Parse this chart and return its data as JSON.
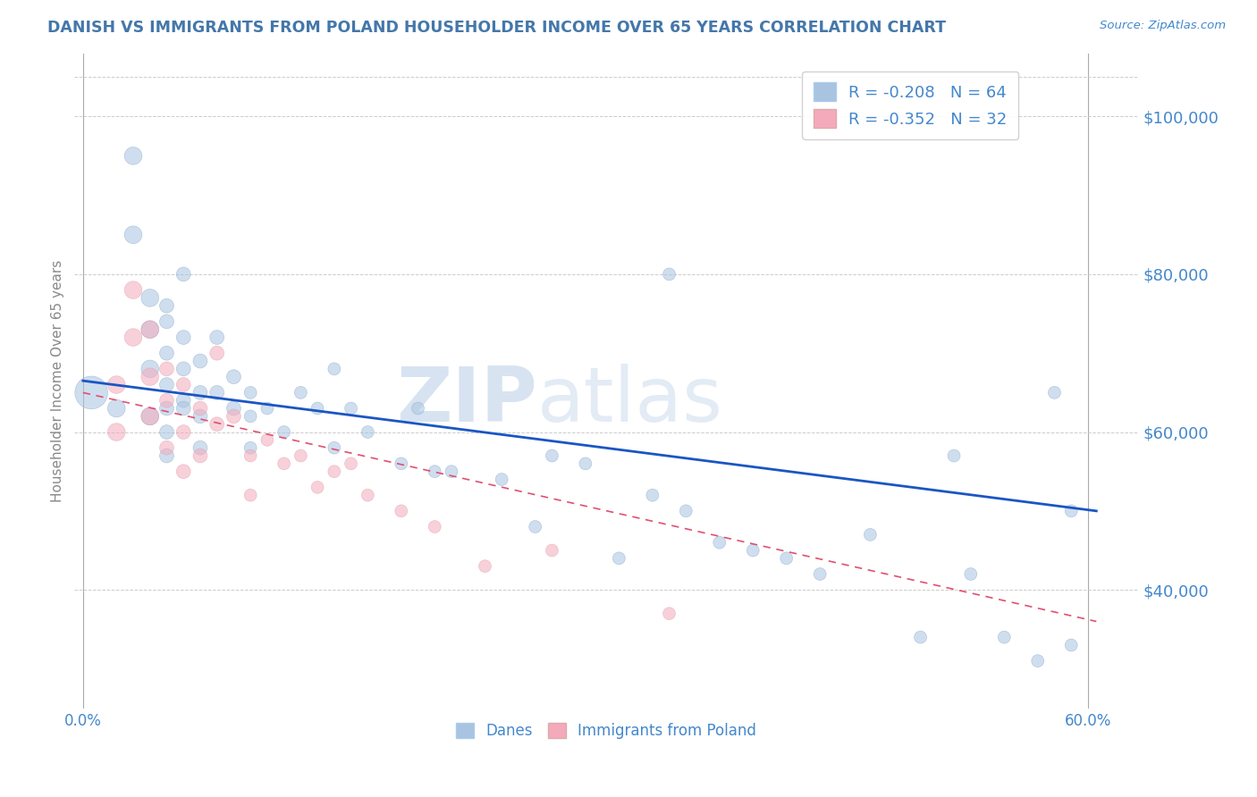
{
  "title": "DANISH VS IMMIGRANTS FROM POLAND HOUSEHOLDER INCOME OVER 65 YEARS CORRELATION CHART",
  "source": "Source: ZipAtlas.com",
  "ylabel": "Householder Income Over 65 years",
  "ytick_values": [
    40000,
    60000,
    80000,
    100000
  ],
  "ylim": [
    25000,
    108000
  ],
  "xlim": [
    -0.005,
    0.63
  ],
  "legend1_R": "-0.208",
  "legend1_N": "64",
  "legend2_R": "-0.352",
  "legend2_N": "32",
  "legend_label1": "Danes",
  "legend_label2": "Immigrants from Poland",
  "blue_color": "#A8C4E0",
  "blue_line_color": "#1A56C4",
  "pink_color": "#F4AABB",
  "pink_line_color": "#E05070",
  "title_color": "#4477AA",
  "axis_label_color": "#4488CC",
  "watermark_zip": "ZIP",
  "watermark_atlas": "atlas",
  "danes_x": [
    0.005,
    0.02,
    0.03,
    0.03,
    0.04,
    0.04,
    0.04,
    0.04,
    0.05,
    0.05,
    0.05,
    0.05,
    0.05,
    0.05,
    0.05,
    0.06,
    0.06,
    0.06,
    0.06,
    0.06,
    0.07,
    0.07,
    0.07,
    0.07,
    0.08,
    0.08,
    0.09,
    0.09,
    0.1,
    0.1,
    0.1,
    0.11,
    0.12,
    0.13,
    0.14,
    0.15,
    0.15,
    0.16,
    0.17,
    0.19,
    0.2,
    0.21,
    0.22,
    0.25,
    0.27,
    0.28,
    0.3,
    0.32,
    0.34,
    0.35,
    0.36,
    0.38,
    0.4,
    0.42,
    0.44,
    0.47,
    0.5,
    0.52,
    0.53,
    0.55,
    0.57,
    0.58,
    0.59,
    0.59
  ],
  "danes_y": [
    65000,
    63000,
    95000,
    85000,
    77000,
    73000,
    68000,
    62000,
    76000,
    74000,
    70000,
    66000,
    63000,
    60000,
    57000,
    80000,
    72000,
    68000,
    64000,
    63000,
    69000,
    65000,
    62000,
    58000,
    72000,
    65000,
    67000,
    63000,
    65000,
    62000,
    58000,
    63000,
    60000,
    65000,
    63000,
    68000,
    58000,
    63000,
    60000,
    56000,
    63000,
    55000,
    55000,
    54000,
    48000,
    57000,
    56000,
    44000,
    52000,
    80000,
    50000,
    46000,
    45000,
    44000,
    42000,
    47000,
    34000,
    57000,
    42000,
    34000,
    31000,
    65000,
    50000,
    33000
  ],
  "poland_x": [
    0.02,
    0.02,
    0.03,
    0.03,
    0.04,
    0.04,
    0.04,
    0.05,
    0.05,
    0.05,
    0.06,
    0.06,
    0.06,
    0.07,
    0.07,
    0.08,
    0.08,
    0.09,
    0.1,
    0.1,
    0.11,
    0.12,
    0.13,
    0.14,
    0.15,
    0.16,
    0.17,
    0.19,
    0.21,
    0.24,
    0.28,
    0.35
  ],
  "poland_y": [
    66000,
    60000,
    78000,
    72000,
    73000,
    67000,
    62000,
    68000,
    64000,
    58000,
    66000,
    60000,
    55000,
    63000,
    57000,
    70000,
    61000,
    62000,
    57000,
    52000,
    59000,
    56000,
    57000,
    53000,
    55000,
    56000,
    52000,
    50000,
    48000,
    43000,
    45000,
    37000
  ],
  "blue_trend_x": [
    0.0,
    0.605
  ],
  "blue_trend_y": [
    66500,
    50000
  ],
  "pink_trend_x": [
    0.0,
    0.605
  ],
  "pink_trend_y": [
    65000,
    36000
  ]
}
